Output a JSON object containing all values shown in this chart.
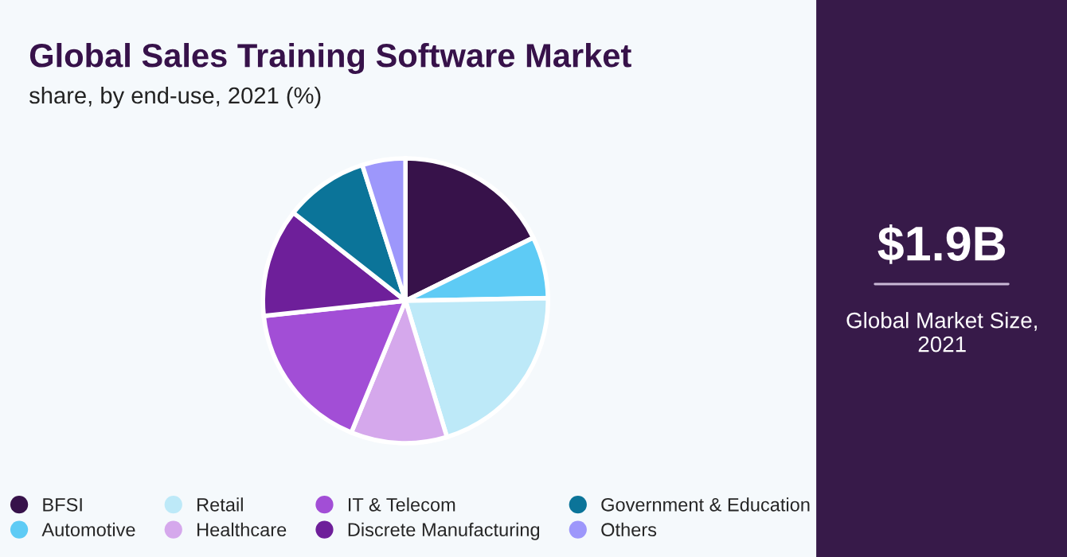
{
  "chart_data": {
    "type": "pie",
    "title": "Global Sales Training Software Market",
    "subtitle": "share, by end-use, 2021 (%)",
    "categories": [
      "BFSI",
      "Automotive",
      "Retail",
      "Healthcare",
      "IT & Telecom",
      "Discrete Manufacturing",
      "Government & Education",
      "Others"
    ],
    "values": [
      17.7,
      7.0,
      20.6,
      10.9,
      17.1,
      12.3,
      9.5,
      4.9
    ],
    "colors": [
      "#37124a",
      "#5ecbf5",
      "#bde9f8",
      "#d5a8ec",
      "#a24ed6",
      "#6e1f9a",
      "#0b7499",
      "#9d97fb"
    ],
    "legend": "bottom",
    "annotations": [
      "$1.9B",
      "Global Market Size, 2021"
    ]
  }
}
